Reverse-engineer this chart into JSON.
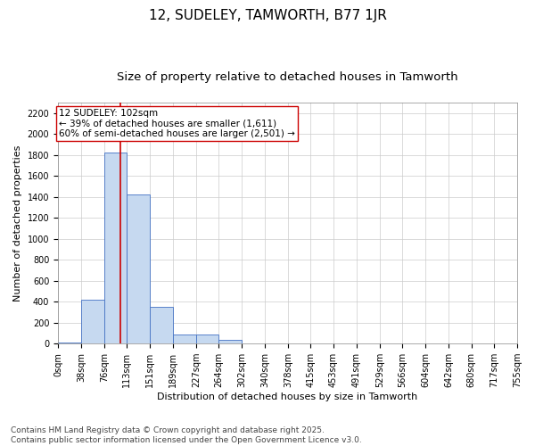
{
  "title1": "12, SUDELEY, TAMWORTH, B77 1JR",
  "title2": "Size of property relative to detached houses in Tamworth",
  "xlabel": "Distribution of detached houses by size in Tamworth",
  "ylabel": "Number of detached properties",
  "footnote1": "Contains HM Land Registry data © Crown copyright and database right 2025.",
  "footnote2": "Contains public sector information licensed under the Open Government Licence v3.0.",
  "annotation_title": "12 SUDELEY: 102sqm",
  "annotation_line1": "← 39% of detached houses are smaller (1,611)",
  "annotation_line2": "60% of semi-detached houses are larger (2,501) →",
  "bar_left_edges": [
    0,
    38,
    76,
    113,
    151,
    189,
    227,
    264,
    302,
    340,
    378,
    415,
    453,
    491,
    529,
    566,
    604,
    642,
    680,
    717
  ],
  "bar_widths": [
    38,
    38,
    37,
    38,
    38,
    38,
    37,
    38,
    38,
    38,
    37,
    38,
    38,
    38,
    37,
    38,
    38,
    38,
    37,
    38
  ],
  "bar_heights": [
    10,
    420,
    1820,
    1420,
    350,
    85,
    90,
    40,
    0,
    0,
    0,
    0,
    0,
    0,
    0,
    0,
    0,
    0,
    0,
    0
  ],
  "bar_color": "#c6d9f0",
  "bar_edgecolor": "#4472c4",
  "vline_x": 102,
  "vline_color": "#cc0000",
  "annotation_box_color": "#cc0000",
  "annotation_box_fill": "#ffffff",
  "tick_labels": [
    "0sqm",
    "38sqm",
    "76sqm",
    "113sqm",
    "151sqm",
    "189sqm",
    "227sqm",
    "264sqm",
    "302sqm",
    "340sqm",
    "378sqm",
    "415sqm",
    "453sqm",
    "491sqm",
    "529sqm",
    "566sqm",
    "604sqm",
    "642sqm",
    "680sqm",
    "717sqm",
    "755sqm"
  ],
  "ylim": [
    0,
    2300
  ],
  "yticks": [
    0,
    200,
    400,
    600,
    800,
    1000,
    1200,
    1400,
    1600,
    1800,
    2000,
    2200
  ],
  "grid_color": "#cccccc",
  "background_color": "#ffffff",
  "title1_fontsize": 11,
  "title2_fontsize": 9.5,
  "axis_label_fontsize": 8,
  "tick_fontsize": 7,
  "footnote_fontsize": 6.5,
  "annotation_fontsize": 7.5
}
